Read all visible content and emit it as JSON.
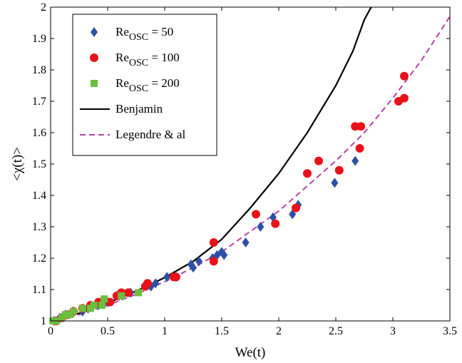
{
  "chart_data": {
    "type": "scatter",
    "xlabel": "We(t)",
    "ylabel": "<χ(t)>",
    "xlim": [
      0,
      3.5
    ],
    "ylim": [
      1,
      2
    ],
    "x_ticks": [
      0,
      0.5,
      1,
      1.5,
      2,
      2.5,
      3,
      3.5
    ],
    "y_ticks": [
      1,
      1.1,
      1.2,
      1.3,
      1.4,
      1.5,
      1.6,
      1.7,
      1.8,
      1.9,
      2
    ],
    "x_tick_labels": [
      "0",
      "0.5",
      "1",
      "1.5",
      "2",
      "2.5",
      "3",
      "3.5"
    ],
    "y_tick_labels": [
      "1",
      "1.1",
      "1.2",
      "1.3",
      "1.4",
      "1.5",
      "1.6",
      "1.7",
      "1.8",
      "1.9",
      "2"
    ],
    "grid": false,
    "legend_position": "top-left",
    "series": [
      {
        "name": "Re_OSC = 50",
        "label_main": "Re",
        "label_sub": "OSC",
        "label_rest": " = 50",
        "marker": "diamond",
        "color": "#2e4fa6",
        "points": [
          [
            0.03,
            1.0
          ],
          [
            0.08,
            1.01
          ],
          [
            0.13,
            1.02
          ],
          [
            0.2,
            1.03
          ],
          [
            0.28,
            1.03
          ],
          [
            0.33,
            1.04
          ],
          [
            0.42,
            1.05
          ],
          [
            0.5,
            1.06
          ],
          [
            0.6,
            1.08
          ],
          [
            0.7,
            1.09
          ],
          [
            0.88,
            1.11
          ],
          [
            0.92,
            1.12
          ],
          [
            1.02,
            1.14
          ],
          [
            1.1,
            1.14
          ],
          [
            1.23,
            1.18
          ],
          [
            1.25,
            1.17
          ],
          [
            1.3,
            1.19
          ],
          [
            1.42,
            1.2
          ],
          [
            1.46,
            1.21
          ],
          [
            1.5,
            1.22
          ],
          [
            1.52,
            1.21
          ],
          [
            1.71,
            1.25
          ],
          [
            1.84,
            1.3
          ],
          [
            1.95,
            1.33
          ],
          [
            2.12,
            1.34
          ],
          [
            2.17,
            1.37
          ],
          [
            2.49,
            1.44
          ],
          [
            2.67,
            1.51
          ]
        ]
      },
      {
        "name": "Re_OSC = 100",
        "label_main": "Re",
        "label_sub": "OSC",
        "label_rest": " = 100",
        "marker": "circle",
        "color": "#e8121a",
        "points": [
          [
            0.05,
            1.0
          ],
          [
            0.1,
            1.01
          ],
          [
            0.15,
            1.02
          ],
          [
            0.2,
            1.03
          ],
          [
            0.28,
            1.04
          ],
          [
            0.35,
            1.05
          ],
          [
            0.42,
            1.06
          ],
          [
            0.52,
            1.06
          ],
          [
            0.58,
            1.08
          ],
          [
            0.62,
            1.09
          ],
          [
            0.68,
            1.09
          ],
          [
            0.83,
            1.11
          ],
          [
            0.85,
            1.12
          ],
          [
            1.08,
            1.14
          ],
          [
            1.1,
            1.14
          ],
          [
            1.43,
            1.19
          ],
          [
            1.43,
            1.25
          ],
          [
            1.8,
            1.34
          ],
          [
            1.97,
            1.31
          ],
          [
            2.15,
            1.36
          ],
          [
            2.25,
            1.47
          ],
          [
            2.35,
            1.51
          ],
          [
            2.53,
            1.48
          ],
          [
            2.67,
            1.62
          ],
          [
            2.71,
            1.55
          ],
          [
            2.72,
            1.62
          ],
          [
            3.05,
            1.7
          ],
          [
            3.1,
            1.71
          ],
          [
            3.1,
            1.78
          ]
        ]
      },
      {
        "name": "Re_OSC = 200",
        "label_main": "Re",
        "label_sub": "OSC",
        "label_rest": " = 200",
        "marker": "square",
        "color": "#6cbf3c",
        "points": [
          [
            0.02,
            1.0
          ],
          [
            0.05,
            1.0
          ],
          [
            0.1,
            1.01
          ],
          [
            0.13,
            1.02
          ],
          [
            0.17,
            1.02
          ],
          [
            0.2,
            1.03
          ],
          [
            0.28,
            1.04
          ],
          [
            0.35,
            1.04
          ],
          [
            0.38,
            1.05
          ],
          [
            0.45,
            1.05
          ],
          [
            0.47,
            1.07
          ],
          [
            0.62,
            1.08
          ],
          [
            0.77,
            1.09
          ]
        ]
      }
    ],
    "curves": [
      {
        "name": "Benjamin",
        "style": "solid",
        "color": "#000000",
        "points": [
          [
            0,
            1.0
          ],
          [
            0.25,
            1.024
          ],
          [
            0.5,
            1.057
          ],
          [
            0.75,
            1.095
          ],
          [
            1.0,
            1.138
          ],
          [
            1.25,
            1.19
          ],
          [
            1.5,
            1.26
          ],
          [
            1.75,
            1.36
          ],
          [
            2.0,
            1.47
          ],
          [
            2.25,
            1.6
          ],
          [
            2.5,
            1.75
          ],
          [
            2.65,
            1.86
          ],
          [
            2.75,
            1.96
          ],
          [
            2.81,
            2.0
          ]
        ]
      },
      {
        "name": "Legendre & al",
        "style": "dashed",
        "color": "#b443a6",
        "points": [
          [
            0,
            1.0
          ],
          [
            0.25,
            1.02
          ],
          [
            0.5,
            1.05
          ],
          [
            0.75,
            1.085
          ],
          [
            1.0,
            1.125
          ],
          [
            1.25,
            1.17
          ],
          [
            1.5,
            1.22
          ],
          [
            1.75,
            1.285
          ],
          [
            2.0,
            1.35
          ],
          [
            2.25,
            1.43
          ],
          [
            2.5,
            1.51
          ],
          [
            2.75,
            1.6
          ],
          [
            3.0,
            1.71
          ],
          [
            3.25,
            1.83
          ],
          [
            3.5,
            1.97
          ]
        ]
      }
    ]
  }
}
